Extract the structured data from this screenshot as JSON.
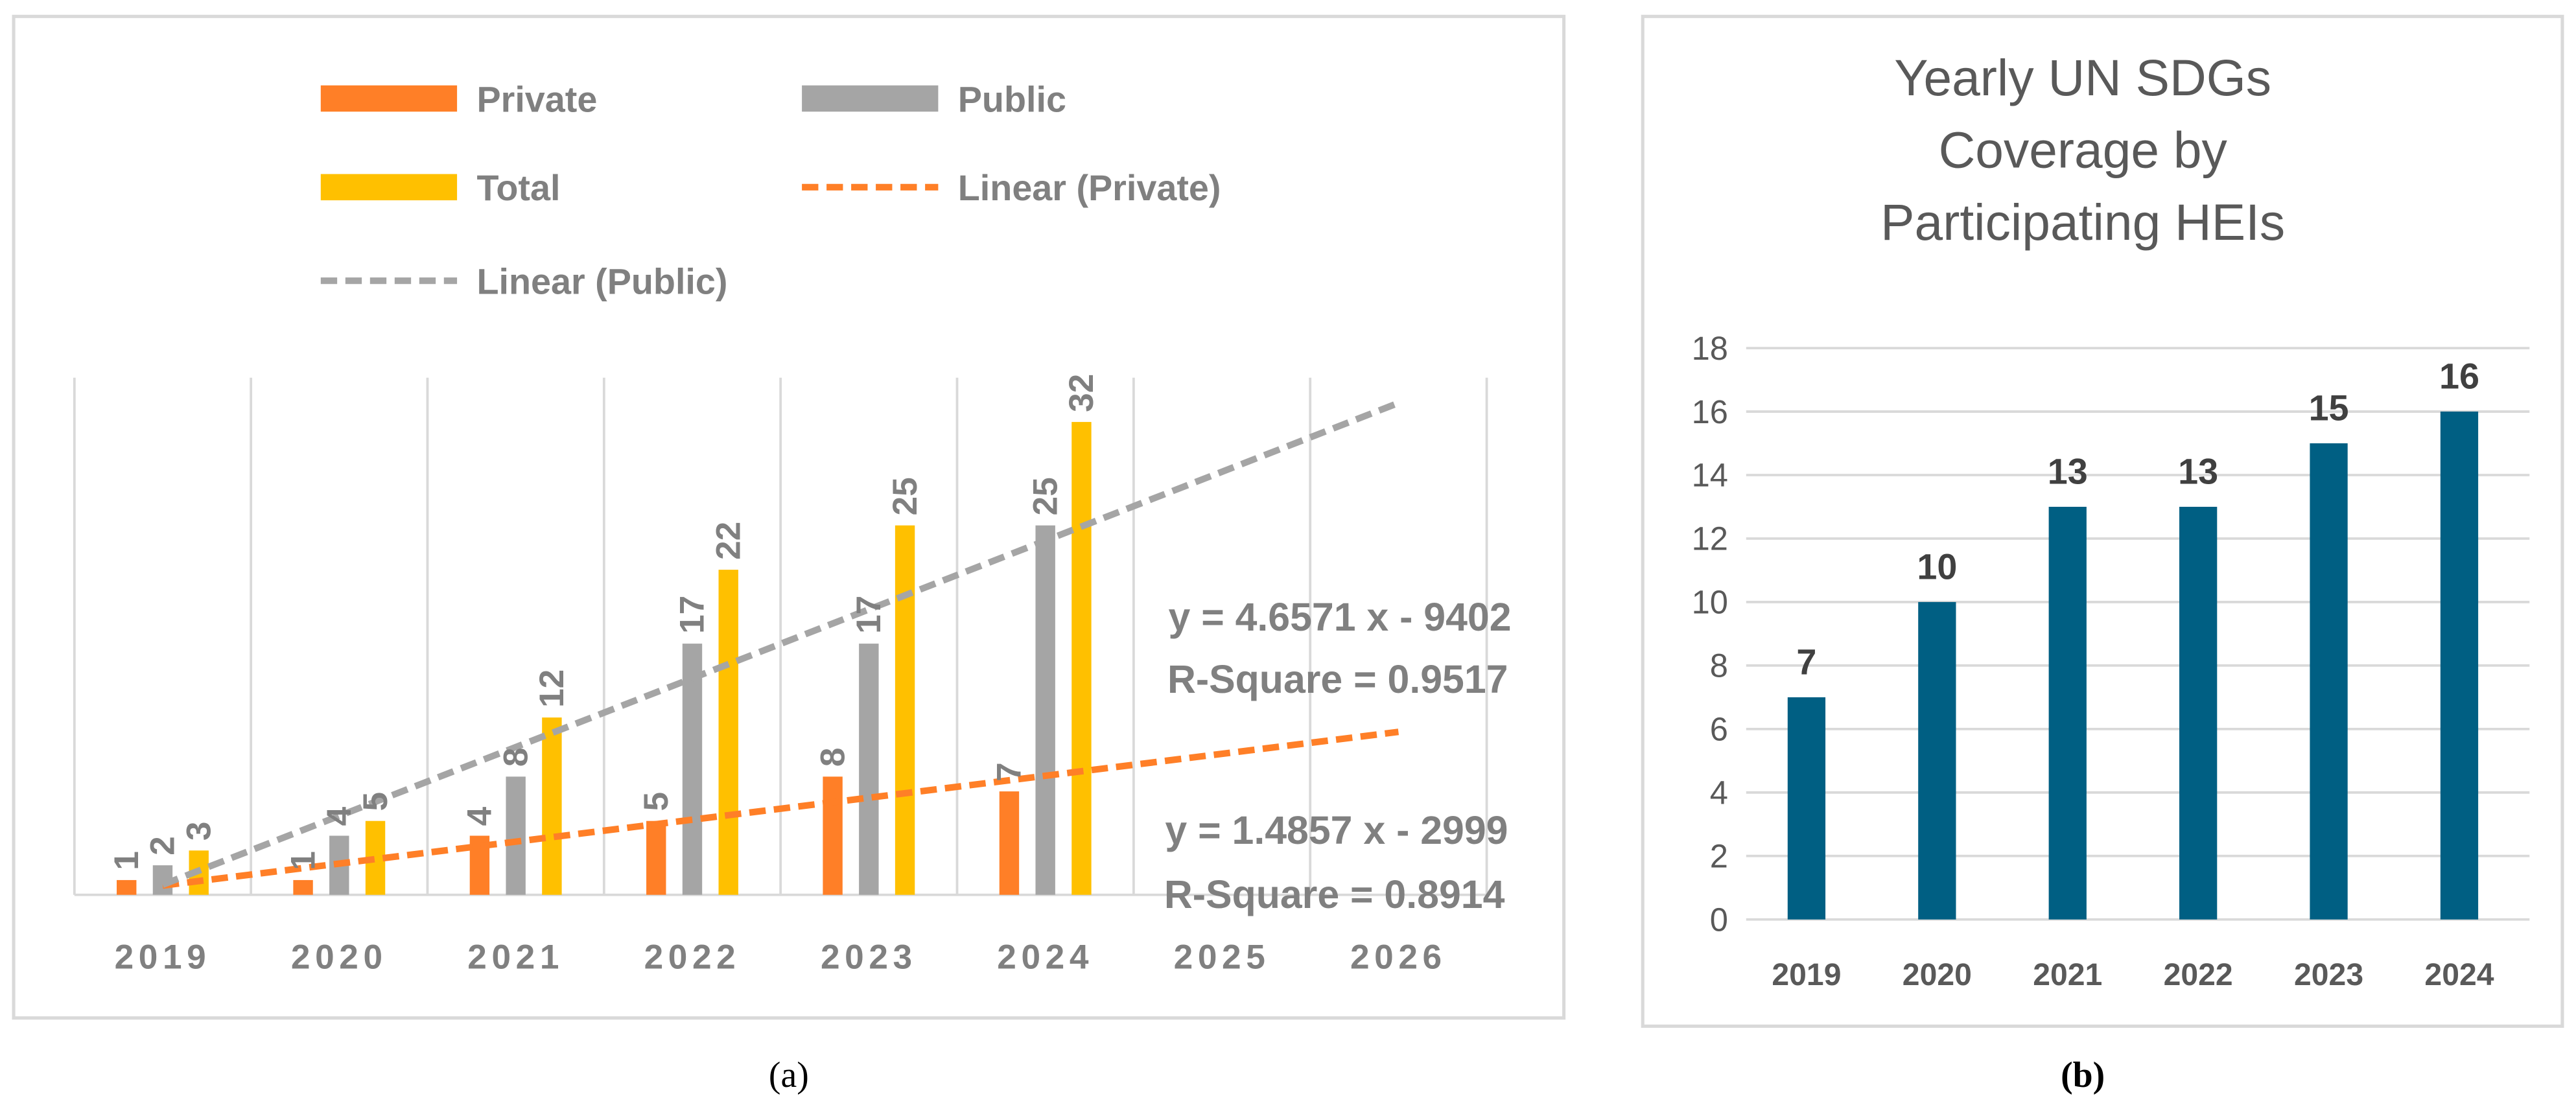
{
  "chart_data": [
    {
      "type": "bar",
      "panel_caption": "(a)",
      "categories": [
        "2019",
        "2020",
        "2021",
        "2022",
        "2023",
        "2024",
        "2025",
        "2026"
      ],
      "series": [
        {
          "name": "Private",
          "values": [
            1,
            1,
            4,
            5,
            8,
            7,
            null,
            null
          ],
          "color": "#FF7F27"
        },
        {
          "name": "Public",
          "values": [
            2,
            4,
            8,
            17,
            17,
            25,
            null,
            null
          ],
          "color": "#A5A5A5"
        },
        {
          "name": "Total",
          "values": [
            3,
            5,
            12,
            22,
            25,
            32,
            null,
            null
          ],
          "color": "#FFC000"
        }
      ],
      "trendlines": [
        {
          "name": "Linear (Private)",
          "of": "Private",
          "slope": 1.4857,
          "intercept": -2999,
          "equation": "y = 1.4857 x - 2999",
          "r_square": "R-Square = 0.8914",
          "color": "#FF7F27"
        },
        {
          "name": "Linear (Public)",
          "of": "Public",
          "slope": 4.6571,
          "intercept": -9402,
          "equation": "y = 4.6571 x - 9402",
          "r_square": "R-Square = 0.9517",
          "color": "#A5A5A5"
        }
      ],
      "legend": [
        "Private",
        "Public",
        "Total",
        "Linear (Private)",
        "Linear (Public)"
      ],
      "legend_position": "top",
      "ylim": [
        0,
        35
      ],
      "grid": "vertical",
      "title": "",
      "xlabel": "",
      "ylabel": ""
    },
    {
      "type": "bar",
      "panel_caption": "(b)",
      "title_lines": [
        "Yearly UN SDGs",
        "Coverage by",
        "Participating HEIs"
      ],
      "title": "Yearly UN SDGs Coverage by Participating HEIs",
      "categories": [
        "2019",
        "2020",
        "2021",
        "2022",
        "2023",
        "2024"
      ],
      "values": [
        7,
        10,
        13,
        13,
        15,
        16
      ],
      "color": "#005F83",
      "ylim": [
        0,
        18
      ],
      "yticks": [
        0,
        2,
        4,
        6,
        8,
        10,
        12,
        14,
        16,
        18
      ],
      "grid": "horizontal",
      "xlabel": "",
      "ylabel": ""
    }
  ]
}
